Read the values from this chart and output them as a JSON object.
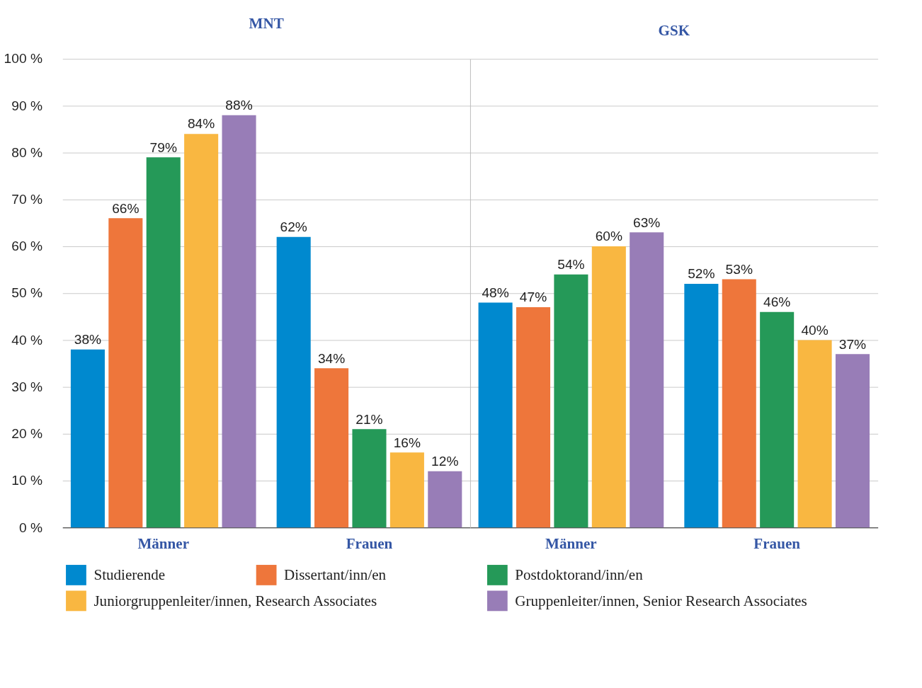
{
  "chart_data": [
    {
      "type": "bar",
      "title": "MNT",
      "categories": [
        "Männer",
        "Frauen"
      ],
      "ylim": [
        0,
        100
      ],
      "yticks": [
        {
          "value": 0,
          "label": "0 %"
        },
        {
          "value": 10,
          "label": "10 %"
        },
        {
          "value": 20,
          "label": "20 %"
        },
        {
          "value": 30,
          "label": "30 %"
        },
        {
          "value": 40,
          "label": "40 %"
        },
        {
          "value": 50,
          "label": "50 %"
        },
        {
          "value": 60,
          "label": "60 %"
        },
        {
          "value": 70,
          "label": "70 %"
        },
        {
          "value": 80,
          "label": "80 %"
        },
        {
          "value": 90,
          "label": "90 %"
        },
        {
          "value": 100,
          "label": "100 %"
        }
      ],
      "grid": "y",
      "legend": "bottom",
      "series": [
        {
          "name": "Studierende",
          "color": "#0089cf",
          "values": [
            38,
            62
          ],
          "value_labels": [
            "38%",
            "62%"
          ]
        },
        {
          "name": "Dissertant/inn/en",
          "color": "#ee763b",
          "values": [
            66,
            34
          ],
          "value_labels": [
            "66%",
            "34%"
          ]
        },
        {
          "name": "Postdoktorand/inn/en",
          "color": "#259958",
          "values": [
            79,
            21
          ],
          "value_labels": [
            "79%",
            "21%"
          ]
        },
        {
          "name": "Juniorgruppenleiter/innen, Research Associates",
          "color": "#f9b741",
          "values": [
            84,
            16
          ],
          "value_labels": [
            "84%",
            "16%"
          ]
        },
        {
          "name": "Gruppenleiter/innen, Senior Research Associates",
          "color": "#987db7",
          "values": [
            88,
            12
          ],
          "value_labels": [
            "88%",
            "12%"
          ]
        }
      ]
    },
    {
      "type": "bar",
      "title": "GSK",
      "categories": [
        "Männer",
        "Frauen"
      ],
      "ylim": [
        0,
        100
      ],
      "yticks": [
        {
          "value": 0,
          "label": null
        },
        {
          "value": 10,
          "label": null
        },
        {
          "value": 20,
          "label": null
        },
        {
          "value": 30,
          "label": null
        },
        {
          "value": 40,
          "label": null
        },
        {
          "value": 50,
          "label": null
        },
        {
          "value": 60,
          "label": null
        },
        {
          "value": 70,
          "label": null
        },
        {
          "value": 80,
          "label": null
        },
        {
          "value": 90,
          "label": null
        },
        {
          "value": 100,
          "label": null
        }
      ],
      "grid": "y",
      "tick_labels": "x",
      "series": [
        {
          "color": "#0089cf",
          "values": [
            48,
            52
          ],
          "value_labels": [
            "48%",
            "52%"
          ]
        },
        {
          "color": "#ee763b",
          "values": [
            47,
            53
          ],
          "value_labels": [
            "47%",
            "53%"
          ]
        },
        {
          "color": "#259958",
          "values": [
            54,
            46
          ],
          "value_labels": [
            "54%",
            "46%"
          ]
        },
        {
          "color": "#f9b741",
          "values": [
            60,
            40
          ],
          "value_labels": [
            "60%",
            "40%"
          ]
        },
        {
          "color": "#987db7",
          "values": [
            63,
            37
          ],
          "value_labels": [
            "63%",
            "37%"
          ]
        }
      ]
    }
  ]
}
